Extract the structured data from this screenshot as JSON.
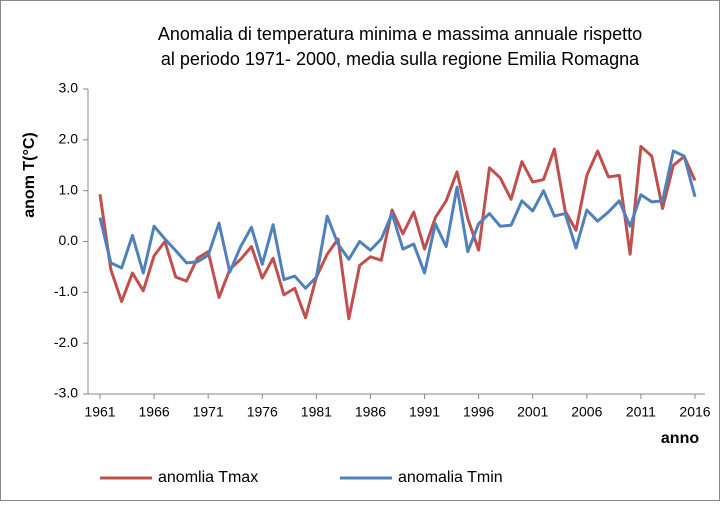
{
  "chart_data": {
    "type": "line",
    "title": [
      "Anomalia di temperatura minima e massima annuale rispetto",
      "al periodo 1971- 2000, media sulla regione Emilia Romagna"
    ],
    "ylabel": "anom T(°C)",
    "xlabel": "anno",
    "x": [
      1961,
      1962,
      1963,
      1964,
      1965,
      1966,
      1967,
      1968,
      1969,
      1970,
      1971,
      1972,
      1973,
      1974,
      1975,
      1976,
      1977,
      1978,
      1979,
      1980,
      1981,
      1982,
      1983,
      1984,
      1985,
      1986,
      1987,
      1988,
      1989,
      1990,
      1991,
      1992,
      1993,
      1994,
      1995,
      1996,
      1997,
      1998,
      1999,
      2000,
      2001,
      2002,
      2003,
      2004,
      2005,
      2006,
      2007,
      2008,
      2009,
      2010,
      2011,
      2012,
      2013,
      2014,
      2015,
      2016
    ],
    "series": [
      {
        "name": "anomlia Tmax",
        "color": "#c0504d",
        "values": [
          0.93,
          -0.55,
          -1.18,
          -0.62,
          -0.97,
          -0.28,
          0.0,
          -0.7,
          -0.78,
          -0.33,
          -0.2,
          -1.1,
          -0.55,
          -0.35,
          -0.1,
          -0.72,
          -0.33,
          -1.05,
          -0.92,
          -1.5,
          -0.7,
          -0.25,
          0.05,
          -1.52,
          -0.47,
          -0.3,
          -0.37,
          0.62,
          0.15,
          0.58,
          -0.15,
          0.47,
          0.8,
          1.37,
          0.45,
          -0.17,
          1.45,
          1.25,
          0.83,
          1.57,
          1.17,
          1.22,
          1.82,
          0.6,
          0.22,
          1.3,
          1.78,
          1.27,
          1.3,
          -0.25,
          1.87,
          1.68,
          0.65,
          1.5,
          1.67,
          1.2
        ]
      },
      {
        "name": "anomalia Tmin",
        "color": "#4f81bd",
        "values": [
          0.47,
          -0.42,
          -0.52,
          0.12,
          -0.62,
          0.3,
          0.05,
          -0.18,
          -0.42,
          -0.4,
          -0.27,
          0.36,
          -0.6,
          -0.1,
          0.28,
          -0.45,
          0.33,
          -0.75,
          -0.68,
          -0.92,
          -0.7,
          0.5,
          -0.05,
          -0.35,
          0.0,
          -0.17,
          0.05,
          0.55,
          -0.15,
          -0.05,
          -0.62,
          0.35,
          -0.1,
          1.07,
          -0.2,
          0.35,
          0.55,
          0.3,
          0.32,
          0.8,
          0.6,
          1.0,
          0.5,
          0.55,
          -0.13,
          0.62,
          0.4,
          0.58,
          0.8,
          0.3,
          0.92,
          0.78,
          0.8,
          1.78,
          1.68,
          0.88
        ]
      }
    ],
    "xlim": [
      1961,
      2016
    ],
    "xticks": [
      1961,
      1966,
      1971,
      1976,
      1981,
      1986,
      1991,
      1996,
      2001,
      2006,
      2011,
      2016
    ],
    "ylim": [
      -3,
      3
    ],
    "yticks": [
      {
        "value": -3,
        "label": "-3.0"
      },
      {
        "value": -2,
        "label": "-2.0"
      },
      {
        "value": -1,
        "label": "-1.0"
      },
      {
        "value": 0,
        "label": "0.0"
      },
      {
        "value": 1,
        "label": "1.0"
      },
      {
        "value": 2,
        "label": "2.0"
      },
      {
        "value": 3,
        "label": "3.0"
      }
    ],
    "grid": false,
    "legend": "bottom"
  }
}
